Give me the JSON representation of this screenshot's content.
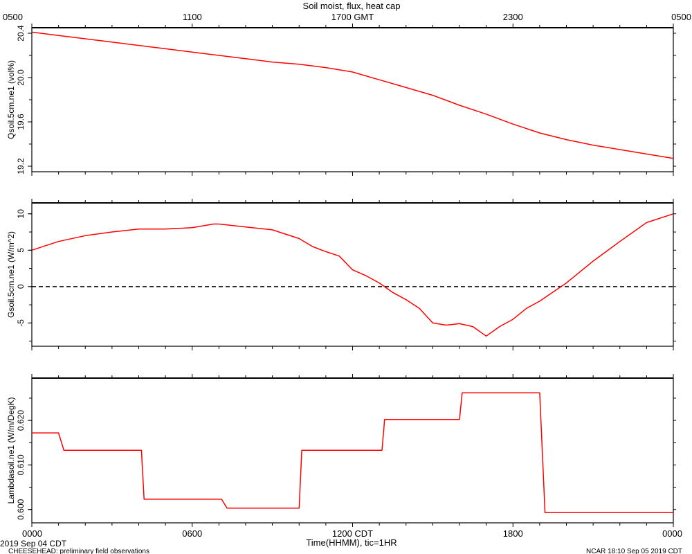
{
  "title": "Soil moist, flux, heat cap",
  "top_axis": {
    "ticks": [
      {
        "h": 0,
        "label": "0500"
      },
      {
        "h": 6,
        "label": "1100"
      },
      {
        "h": 12,
        "label": "1700 GMT"
      },
      {
        "h": 18,
        "label": "2300"
      },
      {
        "h": 24,
        "label": "0500"
      }
    ]
  },
  "bottom_axis": {
    "ticks": [
      {
        "h": 0,
        "label": "0000"
      },
      {
        "h": 6,
        "label": "0600"
      },
      {
        "h": 12,
        "label": "1200 CDT"
      },
      {
        "h": 18,
        "label": "1800"
      },
      {
        "h": 24,
        "label": "0000"
      }
    ],
    "xlabel": "Time(HHMM), tic=1HR",
    "date_label": "2019 Sep 04 CDT"
  },
  "footer": {
    "left": "CHEESEHEAD: preliminary field observations",
    "right": "NCAR 18:10 Sep 05 2019 CDT"
  },
  "chart_data": [
    {
      "type": "line",
      "ylabel": "Qsoil.5cm.ne1 (vol%)",
      "ylim": [
        19.15,
        20.45
      ],
      "yticks": [
        19.2,
        19.6,
        20.0,
        20.4
      ],
      "ytick_labels": [
        "19.2",
        "19.6",
        "20.0",
        "20.4"
      ],
      "series": [
        {
          "color": "#ff0000",
          "x": [
            0,
            1,
            2,
            3,
            4,
            5,
            6,
            7,
            8,
            9,
            10,
            11,
            12,
            13,
            14,
            15,
            16,
            17,
            18,
            19,
            20,
            21,
            22,
            23,
            24
          ],
          "y": [
            20.41,
            20.38,
            20.35,
            20.32,
            20.29,
            20.26,
            20.23,
            20.2,
            20.17,
            20.14,
            20.12,
            20.09,
            20.05,
            19.98,
            19.91,
            19.84,
            19.75,
            19.67,
            19.58,
            19.5,
            19.44,
            19.39,
            19.35,
            19.31,
            19.27
          ]
        }
      ]
    },
    {
      "type": "line",
      "ylabel": "Gsoil.5cm.ne1 (W/m^2)",
      "ylim": [
        -8.2,
        11.5
      ],
      "yticks": [
        -5,
        0,
        5,
        10
      ],
      "ytick_labels": [
        "-5",
        "0",
        "5",
        "10"
      ],
      "zero_line": true,
      "series": [
        {
          "color": "#ff0000",
          "x": [
            0,
            1,
            2,
            3,
            4,
            5,
            6,
            6.8,
            7,
            8,
            9,
            10,
            10.5,
            11,
            11.5,
            12,
            12.5,
            13,
            13.5,
            14,
            14.5,
            15,
            15.5,
            16,
            16.5,
            17,
            17.5,
            18,
            18.5,
            19,
            20,
            21,
            22,
            23,
            24
          ],
          "y": [
            5.0,
            6.2,
            7.0,
            7.5,
            7.9,
            7.9,
            8.1,
            8.6,
            8.6,
            8.2,
            7.8,
            6.6,
            5.5,
            4.8,
            4.2,
            2.3,
            1.5,
            0.5,
            -0.8,
            -1.8,
            -3.0,
            -5.0,
            -5.3,
            -5.1,
            -5.5,
            -6.8,
            -5.5,
            -4.5,
            -3.0,
            -2.0,
            0.5,
            3.5,
            6.2,
            8.8,
            10.0
          ]
        }
      ]
    },
    {
      "type": "line",
      "ylabel": "Lambdasoil.ne1 (W/m/DegK)",
      "ylim": [
        0.597,
        0.6295
      ],
      "yticks": [
        0.6,
        0.61,
        0.62
      ],
      "ytick_labels": [
        "0.600",
        "0.610",
        "0.620"
      ],
      "series": [
        {
          "color": "#ff0000",
          "x": [
            0,
            1,
            1.2,
            4.1,
            4.2,
            7.1,
            7.3,
            10.0,
            10.1,
            13.1,
            13.2,
            16.0,
            16.1,
            19.0,
            19.2,
            24
          ],
          "y": [
            0.6172,
            0.6172,
            0.6133,
            0.6133,
            0.6023,
            0.6023,
            0.6003,
            0.6003,
            0.6133,
            0.6133,
            0.6202,
            0.6202,
            0.6262,
            0.6262,
            0.5993,
            0.5993
          ]
        }
      ]
    }
  ]
}
